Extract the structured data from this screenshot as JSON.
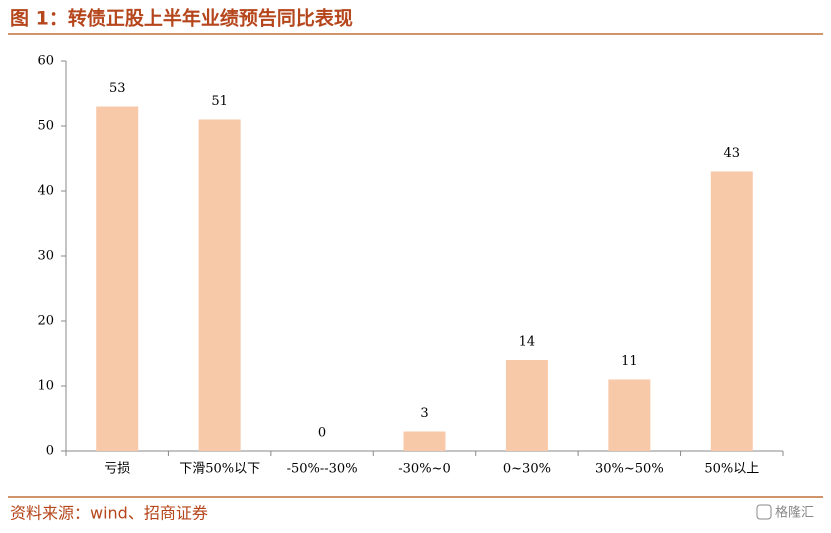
{
  "chart_data": {
    "type": "bar",
    "title": "图 1：转债正股上半年业绩预告同比表现",
    "categories": [
      "亏损",
      "下滑50%以下",
      "-50%--30%",
      "-30%~0",
      "0~30%",
      "30%~50%",
      "50%以上"
    ],
    "values": [
      53,
      51,
      0,
      3,
      14,
      11,
      43
    ],
    "color": "#f8c9a9",
    "ylim": [
      0,
      60
    ],
    "yticks": [
      0,
      10,
      20,
      30,
      40,
      50,
      60
    ],
    "grid": false,
    "source": "资料来源：wind、招商证券",
    "watermark": "格隆汇"
  }
}
